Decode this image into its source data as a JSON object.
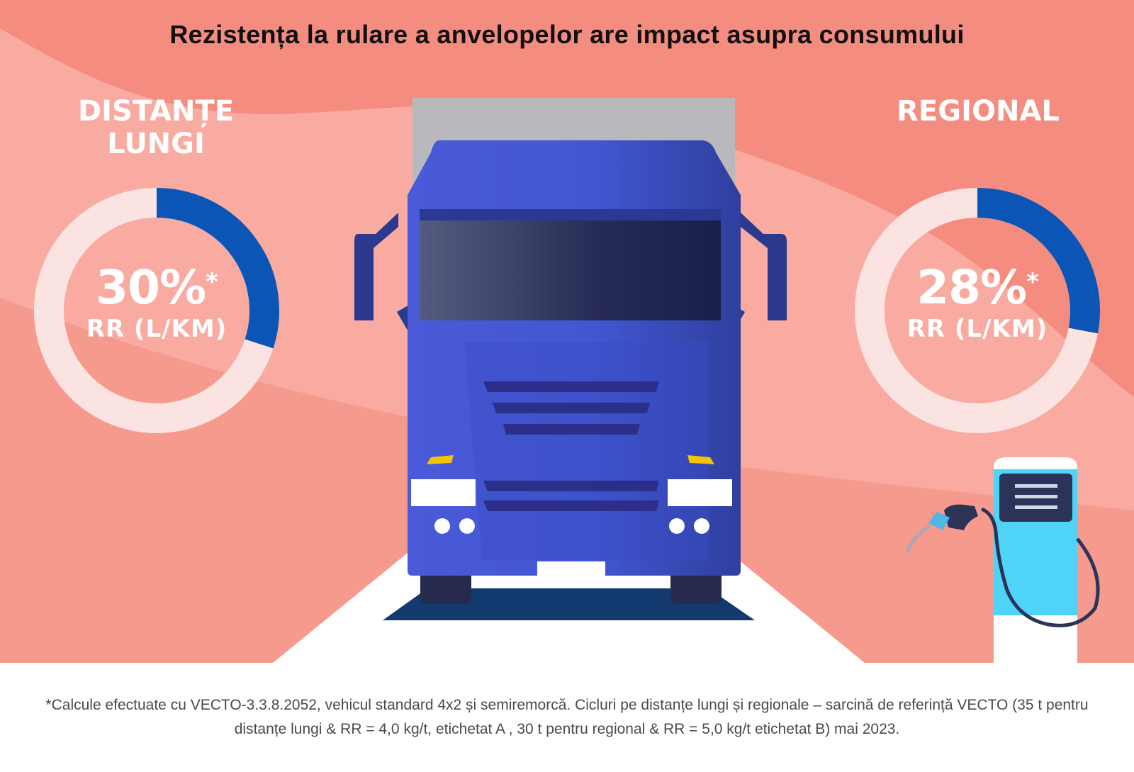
{
  "title": "Rezistența la rulare a anvelopelor are impact asupra consumului",
  "chart_data": [
    {
      "type": "pie",
      "title": "DISTANȚE LUNGI",
      "value_percent": 30,
      "value_label": "30%",
      "marker": "*",
      "unit_label": "RR (L/KM)",
      "slices": [
        {
          "name": "RR",
          "value": 30,
          "color": "#0a55b5"
        },
        {
          "name": "rest",
          "value": 70,
          "color": "#fbe3e1"
        }
      ]
    },
    {
      "type": "pie",
      "title": "REGIONAL",
      "value_percent": 28,
      "value_label": "28%",
      "marker": "*",
      "unit_label": "RR (L/KM)",
      "slices": [
        {
          "name": "RR",
          "value": 28,
          "color": "#0a55b5"
        },
        {
          "name": "rest",
          "value": 72,
          "color": "#fbe3e1"
        }
      ]
    }
  ],
  "illustration": {
    "icons": [
      "truck-icon",
      "fuel-pump-icon"
    ]
  },
  "footnote": "*Calcule efectuate cu VECTO-3.3.8.2052, vehicul standard 4x2 și semiremorcă. Cicluri pe distanțe lungi și regionale – sarcină de referință VECTO (35 t pentru distanțe lungi & RR = 4,0 kg/t, etichetat A , 30 t pentru regional & RR = 5,0 kg/t etichetat B) mai 2023.",
  "colors": {
    "background": "#f58c80",
    "band": "#f9b4ac",
    "accent_blue": "#0a55b5",
    "ring_light": "#fbe3e1",
    "truck_blue": "#4255d3",
    "pump_cyan": "#4fd3f7"
  }
}
